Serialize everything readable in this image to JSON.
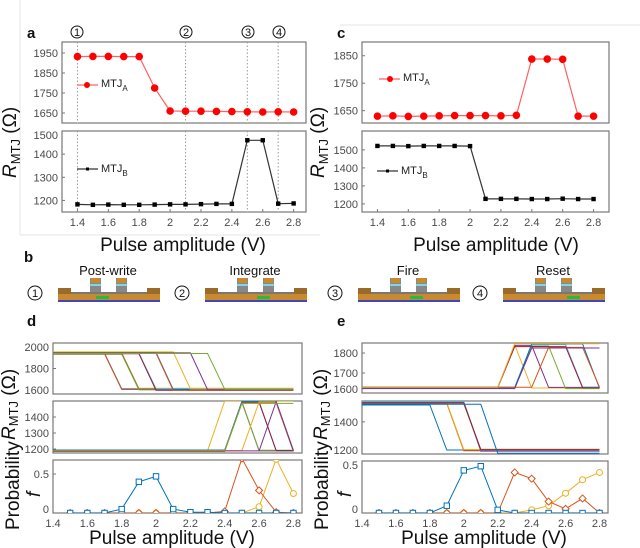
{
  "panel_letters": {
    "a": "a",
    "b": "b",
    "c": "c",
    "d": "d",
    "e": "e"
  },
  "axis_labels": {
    "x": "Pulse amplitude (V)",
    "y_main": "R",
    "y_sub": "MTJ",
    "y_unit": " (Ω)",
    "prob": "Probability",
    "f": "f"
  },
  "legend": {
    "mtj": "MTJ",
    "a_sub": "A",
    "b_sub": "B"
  },
  "markers": [
    "1",
    "2",
    "3",
    "4"
  ],
  "stages": [
    {
      "num": "1",
      "label": "Post-write"
    },
    {
      "num": "2",
      "label": "Integrate"
    },
    {
      "num": "3",
      "label": "Fire"
    },
    {
      "num": "4",
      "label": "Reset"
    }
  ],
  "colors": {
    "mtj_a": "#ff0000",
    "mtj_b": "#000000",
    "matlab": [
      "#0072BD",
      "#D95319",
      "#EDB120",
      "#7E2F8E",
      "#77AC30",
      "#4DBEEE",
      "#A2142F"
    ],
    "device_electrode": "#c98a2e",
    "device_channel": "#22bb44",
    "device_substrate": "#4444bb"
  },
  "chart_data": [
    {
      "id": "a",
      "type": "line",
      "x": [
        1.4,
        1.5,
        1.6,
        1.7,
        1.8,
        1.9,
        2.0,
        2.1,
        2.2,
        2.3,
        2.4,
        2.5,
        2.6,
        2.7,
        2.8
      ],
      "xlim": [
        1.3,
        2.88
      ],
      "xticks": [
        1.4,
        1.6,
        1.8,
        2,
        2.2,
        2.4,
        2.6,
        2.8
      ],
      "stage_markers_x": [
        1.4,
        2.1,
        2.5,
        2.7
      ],
      "subplots": [
        {
          "ylim": [
            1600,
            2005
          ],
          "yticks": [
            1650,
            1750,
            1850,
            1950
          ],
          "series": [
            {
              "name": "MTJ_A",
              "color": "#ff0000",
              "marker": "circle",
              "values": [
                1932,
                1933,
                1933,
                1932,
                1932,
                1775,
                1660,
                1659,
                1659,
                1658,
                1657,
                1656,
                1655,
                1656,
                1655
              ]
            }
          ]
        },
        {
          "ylim": [
            1150,
            1500
          ],
          "yticks": [
            1200,
            1300,
            1400,
            1500
          ],
          "series": [
            {
              "name": "MTJ_B",
              "color": "#000000",
              "marker": "square",
              "values": [
                1183,
                1181,
                1182,
                1181,
                1181,
                1182,
                1183,
                1183,
                1184,
                1185,
                1185,
                1460,
                1460,
                1186,
                1187
              ]
            }
          ]
        }
      ]
    },
    {
      "id": "c",
      "type": "line",
      "x": [
        1.4,
        1.5,
        1.6,
        1.7,
        1.8,
        1.9,
        2.0,
        2.1,
        2.2,
        2.3,
        2.4,
        2.5,
        2.6,
        2.7,
        2.8
      ],
      "xlim": [
        1.3,
        2.9
      ],
      "xticks": [
        1.4,
        1.6,
        1.8,
        2,
        2.2,
        2.4,
        2.6,
        2.8
      ],
      "subplots": [
        {
          "ylim": [
            1605,
            1900
          ],
          "yticks": [
            1650,
            1750,
            1850
          ],
          "series": [
            {
              "name": "MTJ_A",
              "color": "#ff0000",
              "marker": "circle",
              "values": [
                1630,
                1631,
                1629,
                1630,
                1631,
                1632,
                1632,
                1632,
                1631,
                1633,
                1838,
                1838,
                1837,
                1630,
                1630
              ]
            }
          ]
        },
        {
          "ylim": [
            1155,
            1605
          ],
          "yticks": [
            1200,
            1300,
            1400,
            1500
          ],
          "series": [
            {
              "name": "MTJ_B",
              "color": "#000000",
              "marker": "square",
              "values": [
                1522,
                1522,
                1521,
                1522,
                1522,
                1522,
                1521,
                1228,
                1228,
                1228,
                1227,
                1227,
                1229,
                1227,
                1227
              ]
            }
          ]
        }
      ]
    },
    {
      "id": "d",
      "type": "line",
      "xlim": [
        1.4,
        2.85
      ],
      "xticks": [
        1.4,
        1.6,
        1.8,
        2,
        2.2,
        2.4,
        2.6,
        2.8
      ],
      "resistance_top": {
        "ylim": [
          1600,
          2000
        ],
        "yticks": [
          1600,
          1800,
          2000
        ],
        "traces_switch_down": [
          {
            "hi": 1920,
            "lo": 1640,
            "down": 1.7
          },
          {
            "hi": 1915,
            "lo": 1635,
            "down": 1.7
          },
          {
            "hi": 1925,
            "lo": 1645,
            "down": 1.8
          },
          {
            "hi": 1918,
            "lo": 1638,
            "down": 1.8
          },
          {
            "hi": 1912,
            "lo": 1632,
            "down": 1.8
          },
          {
            "hi": 1922,
            "lo": 1642,
            "down": 1.9
          },
          {
            "hi": 1916,
            "lo": 1630,
            "down": 1.9
          },
          {
            "hi": 1926,
            "lo": 1636,
            "down": 2.0
          },
          {
            "hi": 1920,
            "lo": 1628,
            "down": 2.0
          },
          {
            "hi": 1930,
            "lo": 1640,
            "down": 2.1
          },
          {
            "hi": 1922,
            "lo": 1634,
            "down": 2.2
          },
          {
            "hi": 1918,
            "lo": 1638,
            "down": 2.3
          }
        ]
      },
      "resistance_mid": {
        "ylim": [
          1175,
          1500
        ],
        "yticks": [
          1200,
          1300,
          1400
        ],
        "traces_pulse": [
          {
            "base": 1190,
            "peak": 1500,
            "up": 2.3,
            "down": null
          },
          {
            "base": 1188,
            "peak": 1495,
            "up": 2.4,
            "down": 2.5
          },
          {
            "base": 1192,
            "peak": 1490,
            "up": 2.4,
            "down": 2.5
          },
          {
            "base": 1186,
            "peak": 1498,
            "up": 2.4,
            "down": 2.6
          },
          {
            "base": 1190,
            "peak": 1492,
            "up": 2.4,
            "down": 2.6
          },
          {
            "base": 1194,
            "peak": 1496,
            "up": 2.4,
            "down": 2.7
          },
          {
            "base": 1185,
            "peak": 1488,
            "up": 2.4,
            "down": 2.7
          },
          {
            "base": 1190,
            "peak": 1494,
            "up": 2.5,
            "down": 2.7
          },
          {
            "base": 1188,
            "peak": 1497,
            "up": 2.6,
            "down": 2.7
          },
          {
            "base": 1191,
            "peak": 1485,
            "up": 2.4,
            "down": null
          }
        ]
      },
      "probability": {
        "ylim": [
          0,
          0.68
        ],
        "yticks": [
          0,
          0.5
        ],
        "x": [
          1.5,
          1.6,
          1.7,
          1.8,
          1.9,
          2.0,
          2.1,
          2.2,
          2.3,
          2.4,
          2.5,
          2.6,
          2.7,
          2.8
        ],
        "series": [
          {
            "color": "#0072BD",
            "marker": "square",
            "values": [
              0,
              0,
              0,
              0.05,
              0.4,
              0.47,
              0.05,
              0.01,
              0.01,
              0,
              0,
              0,
              0,
              0
            ]
          },
          {
            "color": "#D95319",
            "marker": "diamond",
            "values": [
              0,
              0,
              0,
              0,
              0,
              0,
              0,
              0,
              0,
              0.02,
              0.7,
              0.29,
              0.01,
              0
            ]
          },
          {
            "color": "#EDB120",
            "marker": "circle",
            "values": [
              0,
              0,
              0,
              0,
              0,
              0,
              0,
              0,
              0,
              0,
              0,
              0.08,
              0.69,
              0.25
            ]
          }
        ]
      }
    },
    {
      "id": "e",
      "type": "line",
      "xlim": [
        1.4,
        2.85
      ],
      "xticks": [
        1.4,
        1.6,
        1.8,
        2,
        2.2,
        2.4,
        2.6,
        2.8
      ],
      "resistance_top": {
        "ylim": [
          1600,
          1850
        ],
        "yticks": [
          1600,
          1700,
          1800
        ],
        "traces_pulse": [
          {
            "base": 1625,
            "peak": 1840,
            "up": 2.2,
            "down": 2.3
          },
          {
            "base": 1628,
            "peak": 1838,
            "up": 2.2,
            "down": 2.4
          },
          {
            "base": 1622,
            "peak": 1835,
            "up": 2.3,
            "down": 2.5
          },
          {
            "base": 1630,
            "peak": 1842,
            "up": 2.3,
            "down": 2.6
          },
          {
            "base": 1626,
            "peak": 1832,
            "up": 2.2,
            "down": 2.6
          },
          {
            "base": 1624,
            "peak": 1845,
            "up": 2.3,
            "down": 2.7
          },
          {
            "base": 1629,
            "peak": 1828,
            "up": 2.4,
            "down": 2.7
          },
          {
            "base": 1627,
            "peak": 1846,
            "up": 2.2,
            "down": null
          },
          {
            "base": 1623,
            "peak": 1825,
            "up": 2.3,
            "down": null
          }
        ]
      },
      "resistance_mid": {
        "ylim": [
          1200,
          1530
        ],
        "yticks": [
          1200,
          1400
        ],
        "traces_switch_down": [
          {
            "hi": 1505,
            "lo": 1225,
            "down": 1.8
          },
          {
            "hi": 1515,
            "lo": 1220,
            "down": 1.9
          },
          {
            "hi": 1520,
            "lo": 1228,
            "down": 1.9
          },
          {
            "hi": 1522,
            "lo": 1218,
            "down": 2.0
          },
          {
            "hi": 1512,
            "lo": 1230,
            "down": 2.0
          },
          {
            "hi": 1525,
            "lo": 1224,
            "down": 2.0
          },
          {
            "hi": 1518,
            "lo": 1226,
            "down": 2.0
          },
          {
            "hi": 1510,
            "lo": 1205,
            "down": 2.1
          }
        ]
      },
      "probability": {
        "ylim": [
          0,
          0.5
        ],
        "yticks": [
          0,
          0.5
        ],
        "x": [
          1.5,
          1.6,
          1.7,
          1.8,
          1.9,
          2.0,
          2.1,
          2.2,
          2.3,
          2.4,
          2.5,
          2.6,
          2.7,
          2.8
        ],
        "series": [
          {
            "color": "#0072BD",
            "marker": "square",
            "values": [
              0,
              0,
              0,
              0,
              0.07,
              0.41,
              0.45,
              0.03,
              0,
              0,
              0,
              0,
              0,
              0
            ]
          },
          {
            "color": "#D95319",
            "marker": "diamond",
            "values": [
              0,
              0,
              0,
              0,
              0,
              0,
              0,
              0,
              0.39,
              0.33,
              0.11,
              0.04,
              0.14,
              0
            ]
          },
          {
            "color": "#EDB120",
            "marker": "circle",
            "values": [
              0,
              0,
              0,
              0,
              0,
              0,
              0,
              0,
              0,
              0.03,
              0.07,
              0.19,
              0.32,
              0.39
            ]
          }
        ]
      }
    }
  ]
}
